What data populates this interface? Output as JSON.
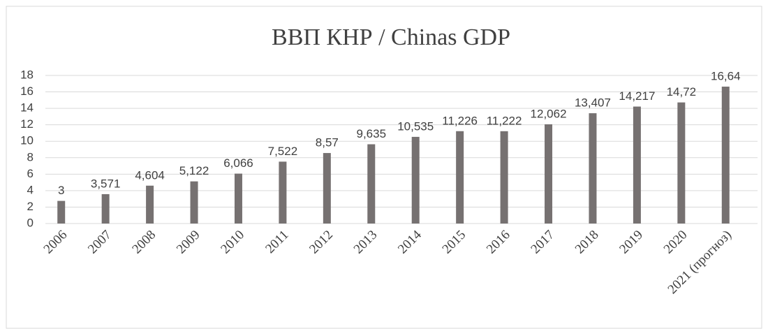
{
  "chart_data": {
    "type": "bar",
    "title": "ВВП КНР / Chinas GDP",
    "categories": [
      "2006",
      "2007",
      "2008",
      "2009",
      "2010",
      "2011",
      "2012",
      "2013",
      "2014",
      "2015",
      "2016",
      "2017",
      "2018",
      "2019",
      "2020",
      "2021 (прогноз)"
    ],
    "values": [
      2.75,
      3.571,
      4.604,
      5.122,
      6.066,
      7.522,
      8.57,
      9.635,
      10.535,
      11.226,
      11.222,
      12.062,
      13.407,
      14.217,
      14.72,
      16.64
    ],
    "value_labels": [
      "3",
      "3,571",
      "4,604",
      "5,122",
      "6,066",
      "7,522",
      "8,57",
      "9,635",
      "10,535",
      "11,226",
      "11,222",
      "12,062",
      "13,407",
      "14,217",
      "14,72",
      "16,64"
    ],
    "color": "#767171",
    "ylim": [
      0,
      18
    ],
    "yticks": [
      0,
      2,
      4,
      6,
      8,
      10,
      12,
      14,
      16,
      18
    ],
    "grid": true
  }
}
